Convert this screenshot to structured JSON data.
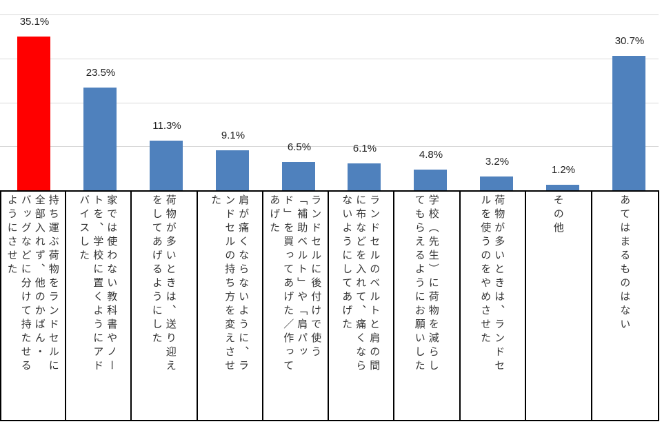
{
  "chart_data": {
    "type": "bar",
    "title": "",
    "xlabel": "",
    "ylabel": "",
    "ylim": [
      0,
      40
    ],
    "grid": true,
    "gridlines": [
      10,
      20,
      30,
      40
    ],
    "value_suffix": "%",
    "highlight_color": "#ff0000",
    "bar_color": "#4f81bd",
    "categories": [
      "持ち運ぶ荷物をランドセルに全部入れず、他のかばん・バッグなどに分けて持たせるようにさせた",
      "家では使わない教科書やノートを、学校に置くようにアドバイスした",
      "荷物が多いときは、送り迎えをしてあげるようにした",
      "肩が痛くならないように、ランドセルの持ち方を変えさせた",
      "ランドセルに後付けで使う「補助ベルト」や「肩パッド」を買ってあげた／作ってあげた",
      "ランドセルのベルトと肩の間に布などを入れて、痛くならないようにしてあげた",
      "学校（先生）に荷物を減らしてもらえるようにお願いした",
      "荷物が多いときは、ランドセルを使うのをやめさせた",
      "その他",
      "あてはまるものはない"
    ],
    "values": [
      35.1,
      23.5,
      11.3,
      9.1,
      6.5,
      6.1,
      4.8,
      3.2,
      1.2,
      30.7
    ],
    "value_labels": [
      "35.1%",
      "23.5%",
      "11.3%",
      "9.1%",
      "6.5%",
      "6.1%",
      "4.8%",
      "3.2%",
      "1.2%",
      "30.7%"
    ],
    "colors": [
      "#ff0000",
      "#4f81bd",
      "#4f81bd",
      "#4f81bd",
      "#4f81bd",
      "#4f81bd",
      "#4f81bd",
      "#4f81bd",
      "#4f81bd",
      "#4f81bd"
    ]
  },
  "table": {
    "labels": [
      "持ち運ぶ荷物をランドセルに\n全部入れず、他のかばん・\nバッグなどに分けて持たせる\nようにさせた",
      "家では使わない教科書やノー\nトを、学校に置くようにアド\nバイスした",
      "荷物が多いときは、送り迎え\nをしてあげるようにした",
      "肩が痛くならないように、ラ\nンドセルの持ち方を変えさせ\nた",
      "ランドセルに後付けで使う\n「補助ベルト」や「肩パッ\nド」を買ってあげた／作って\nあげた",
      "ランドセルのベルトと肩の間\nに布などを入れて、痛くなら\nないようにしてあげた",
      "学校（先生）に荷物を減らし\nてもらえるようにお願いした",
      "荷物が多いときは、ランドセ\nルを使うのをやめさせた",
      "その他",
      "あてはまるものはない"
    ]
  }
}
